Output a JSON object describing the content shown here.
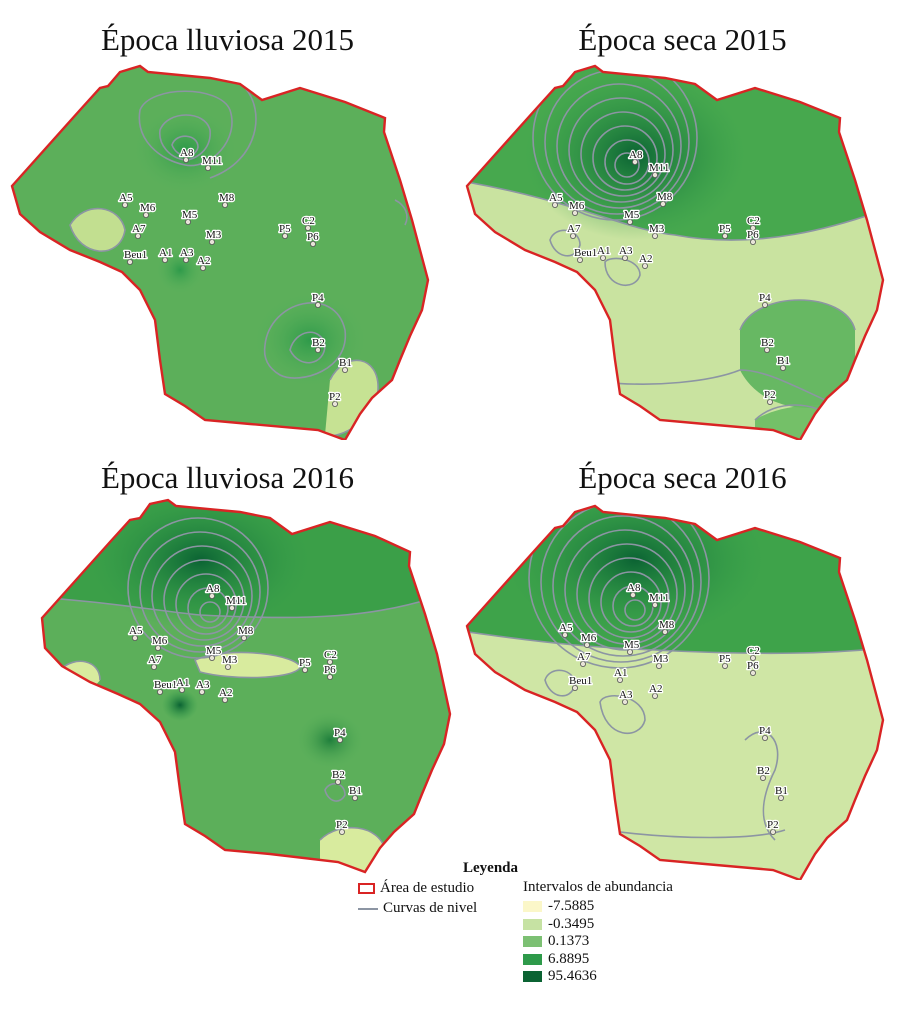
{
  "panels": [
    {
      "title": "Época lluviosa 2015",
      "sites": [
        "A8",
        "M11",
        "A5",
        "M6",
        "A7",
        "M5",
        "M8",
        "M3",
        "P5",
        "C2",
        "P6",
        "Beu1",
        "A1",
        "A3",
        "A2",
        "P4",
        "B2",
        "B1",
        "P2"
      ]
    },
    {
      "title": "Época seca 2015",
      "sites": [
        "A8",
        "M11",
        "A5",
        "M6",
        "A7",
        "M5",
        "M8",
        "M3",
        "P5",
        "C2",
        "P6",
        "Beu1",
        "A1",
        "A3",
        "A2",
        "P4",
        "B2",
        "B1",
        "P2"
      ]
    },
    {
      "title": "Época lluviosa 2016",
      "sites": [
        "A8",
        "M11",
        "A5",
        "M6",
        "A7",
        "M5",
        "M8",
        "M3",
        "P5",
        "C2",
        "P6",
        "Beu1",
        "A1",
        "A3",
        "A2",
        "P4",
        "B2",
        "B1",
        "P2"
      ]
    },
    {
      "title": "Época seca 2016",
      "sites": [
        "A8",
        "M11",
        "A5",
        "M6",
        "A7",
        "M5",
        "M8",
        "M3",
        "P5",
        "C2",
        "P6",
        "Beu1",
        "A1",
        "A3",
        "A2",
        "P4",
        "B2",
        "B1",
        "P2"
      ]
    }
  ],
  "legend": {
    "title": "Leyenda",
    "study_area": "Área de estudio",
    "contours": "Curvas de nivel",
    "intervals_title": "Intervalos de abundancia",
    "classes": [
      {
        "label": "-7.5885",
        "color": "#fbf7c9"
      },
      {
        "label": "-0.3495",
        "color": "#c6e2a3"
      },
      {
        "label": "0.1373",
        "color": "#7cc073"
      },
      {
        "label": "6.8895",
        "color": "#2e9a4a"
      },
      {
        "label": "95.4636",
        "color": "#0b6333"
      }
    ]
  },
  "colors": {
    "boundary": "#d92424",
    "contour": "#8c95a3"
  }
}
